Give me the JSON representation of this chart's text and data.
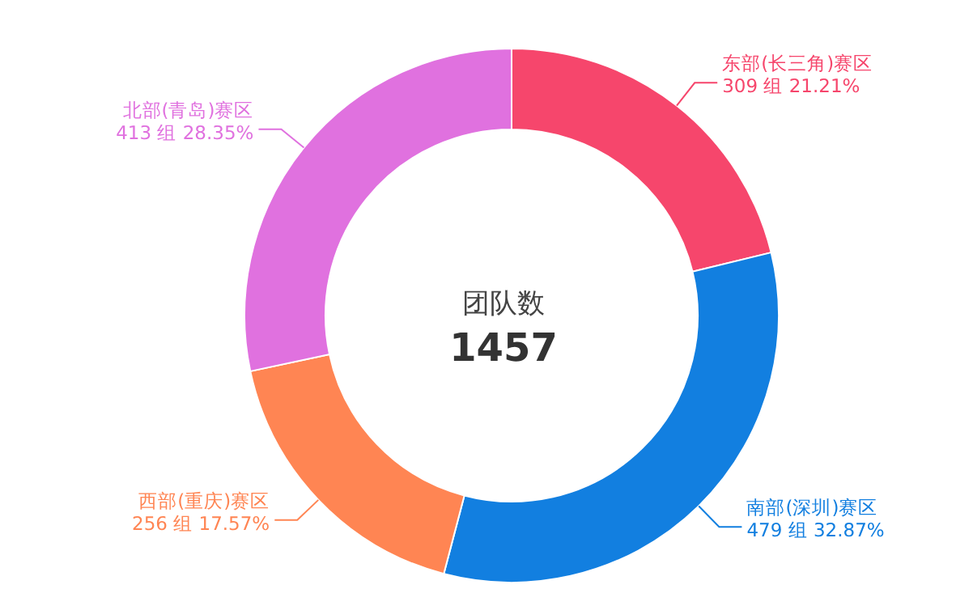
{
  "chart_data": {
    "type": "donut",
    "title": "团队数",
    "subtitle": "1457",
    "categories": [
      "东部(长三角)赛区",
      "南部(深圳)赛区",
      "西部(重庆)赛区",
      "北部(青岛)赛区"
    ],
    "values": [
      309,
      479,
      256,
      413
    ],
    "value_labels": [
      "309 组 21.21%",
      "479 组 32.87%",
      "256 组 17.57%",
      "413 组 28.35%"
    ],
    "colors": [
      "#f6466c",
      "#127fe0",
      "#ff8553",
      "#e071df"
    ]
  }
}
